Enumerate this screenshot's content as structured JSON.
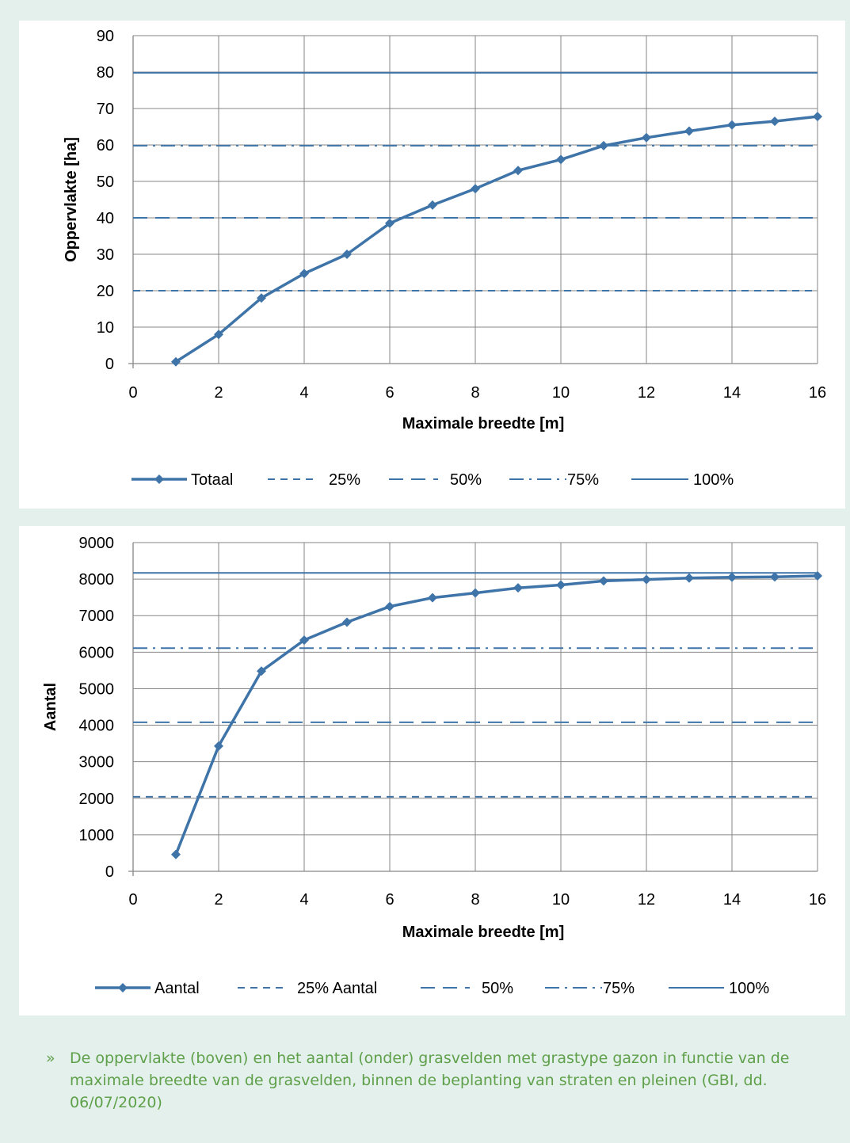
{
  "caption": {
    "bullet": "»",
    "text": "De oppervlakte (boven) en het aantal (onder) grasvelden met grastype gazon in functie van de maximale breedte van de grasvelden, binnen de beplanting van straten en pleinen (GBI, dd. 06/07/2020)"
  },
  "chart_data": [
    {
      "type": "line",
      "xlabel": "Maximale breedte [m]",
      "ylabel": "Oppervlakte [ha]",
      "xlim": [
        0,
        16
      ],
      "ylim": [
        0,
        90
      ],
      "x_ticks": [
        0,
        2,
        4,
        6,
        8,
        10,
        12,
        14,
        16
      ],
      "y_ticks": [
        0,
        10,
        20,
        30,
        40,
        50,
        60,
        70,
        80,
        90
      ],
      "grid": true,
      "legend_position": "bottom",
      "series": [
        {
          "name": "Totaal",
          "style": "solid-markers",
          "x": [
            1,
            2,
            3,
            4,
            5,
            6,
            7,
            8,
            9,
            10,
            11,
            12,
            13,
            14,
            15,
            16
          ],
          "values": [
            0.5,
            8,
            18,
            24.7,
            30,
            38.5,
            43.5,
            48,
            53,
            56,
            59.8,
            62,
            63.8,
            65.5,
            66.5,
            67.8
          ]
        },
        {
          "name": "25%",
          "style": "short-dash",
          "x": [
            0,
            16
          ],
          "values": [
            20,
            20
          ]
        },
        {
          "name": "50%",
          "style": "long-dash",
          "x": [
            0,
            16
          ],
          "values": [
            40,
            40
          ]
        },
        {
          "name": "75%",
          "style": "dash-dot",
          "x": [
            0,
            16
          ],
          "values": [
            59.8,
            59.8
          ]
        },
        {
          "name": "100%",
          "style": "solid",
          "x": [
            0,
            16
          ],
          "values": [
            79.8,
            79.8
          ]
        }
      ]
    },
    {
      "type": "line",
      "xlabel": "Maximale breedte [m]",
      "ylabel": "Aantal",
      "xlim": [
        0,
        16
      ],
      "ylim": [
        0,
        9000
      ],
      "x_ticks": [
        0,
        2,
        4,
        6,
        8,
        10,
        12,
        14,
        16
      ],
      "y_ticks": [
        0,
        1000,
        2000,
        3000,
        4000,
        5000,
        6000,
        7000,
        8000,
        9000
      ],
      "grid": true,
      "legend_position": "bottom",
      "series": [
        {
          "name": "Aantal",
          "style": "solid-markers",
          "x": [
            1,
            2,
            3,
            4,
            5,
            6,
            7,
            8,
            9,
            10,
            11,
            12,
            13,
            14,
            15,
            16
          ],
          "values": [
            460,
            3430,
            5480,
            6330,
            6820,
            7250,
            7490,
            7620,
            7760,
            7840,
            7950,
            7990,
            8030,
            8050,
            8060,
            8090
          ]
        },
        {
          "name": "25% Aantal",
          "style": "short-dash",
          "x": [
            0,
            16
          ],
          "values": [
            2040,
            2040
          ]
        },
        {
          "name": "50%",
          "style": "long-dash",
          "x": [
            0,
            16
          ],
          "values": [
            4080,
            4080
          ]
        },
        {
          "name": "75%",
          "style": "dash-dot",
          "x": [
            0,
            16
          ],
          "values": [
            6110,
            6110
          ]
        },
        {
          "name": "100%",
          "style": "solid",
          "x": [
            0,
            16
          ],
          "values": [
            8170,
            8170
          ]
        }
      ]
    }
  ],
  "colors": {
    "series": "#3f74a8",
    "grid": "#868686",
    "text": "#000000",
    "caption": "#5fa04a",
    "background": "#e4f0ec"
  }
}
